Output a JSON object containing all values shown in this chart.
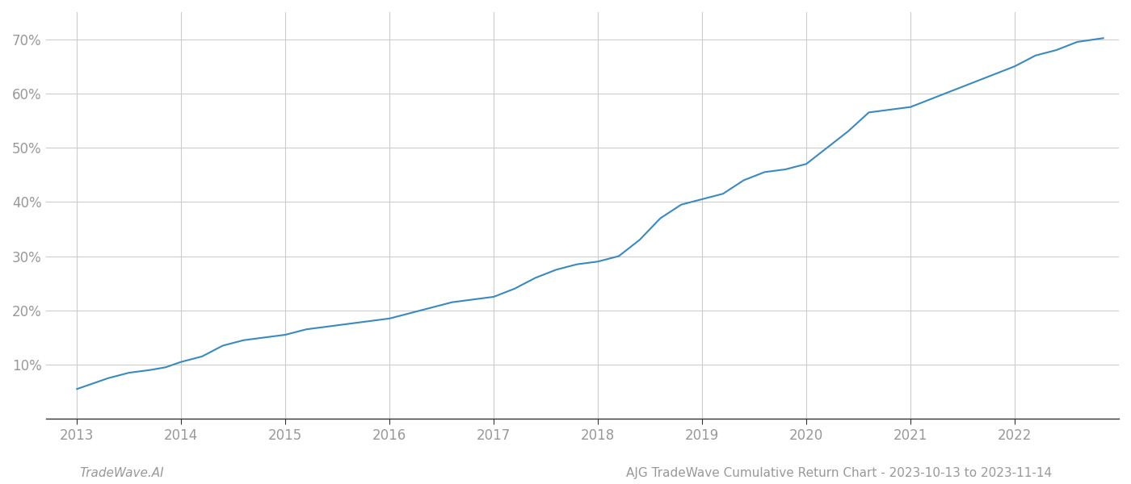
{
  "title": "AJG TradeWave Cumulative Return Chart - 2023-10-13 to 2023-11-14",
  "watermark": "TradeWave.AI",
  "line_color": "#3a8abf",
  "background_color": "#ffffff",
  "grid_color": "#cccccc",
  "x_values": [
    2013.0,
    2013.15,
    2013.3,
    2013.5,
    2013.7,
    2013.85,
    2014.0,
    2014.2,
    2014.4,
    2014.6,
    2014.8,
    2015.0,
    2015.2,
    2015.4,
    2015.6,
    2015.8,
    2016.0,
    2016.2,
    2016.4,
    2016.6,
    2016.8,
    2017.0,
    2017.2,
    2017.4,
    2017.6,
    2017.8,
    2018.0,
    2018.2,
    2018.4,
    2018.6,
    2018.8,
    2019.0,
    2019.2,
    2019.4,
    2019.6,
    2019.8,
    2020.0,
    2020.2,
    2020.4,
    2020.6,
    2020.8,
    2021.0,
    2021.2,
    2021.4,
    2021.6,
    2021.8,
    2022.0,
    2022.2,
    2022.4,
    2022.6,
    2022.85
  ],
  "y_values": [
    5.5,
    6.5,
    7.5,
    8.5,
    9.0,
    9.5,
    10.5,
    11.5,
    13.5,
    14.5,
    15.0,
    15.5,
    16.5,
    17.0,
    17.5,
    18.0,
    18.5,
    19.5,
    20.5,
    21.5,
    22.0,
    22.5,
    24.0,
    26.0,
    27.5,
    28.5,
    29.0,
    30.0,
    33.0,
    37.0,
    39.5,
    40.5,
    41.5,
    44.0,
    45.5,
    46.0,
    47.0,
    50.0,
    53.0,
    56.5,
    57.0,
    57.5,
    59.0,
    60.5,
    62.0,
    63.5,
    65.0,
    67.0,
    68.0,
    69.5,
    70.2
  ],
  "xlim": [
    2012.7,
    2023.0
  ],
  "ylim": [
    0,
    75
  ],
  "yticks": [
    10,
    20,
    30,
    40,
    50,
    60,
    70
  ],
  "xticks": [
    2013,
    2014,
    2015,
    2016,
    2017,
    2018,
    2019,
    2020,
    2021,
    2022
  ],
  "tick_label_color": "#999999",
  "tick_fontsize": 12,
  "title_fontsize": 11,
  "watermark_fontsize": 11,
  "line_width": 1.5
}
